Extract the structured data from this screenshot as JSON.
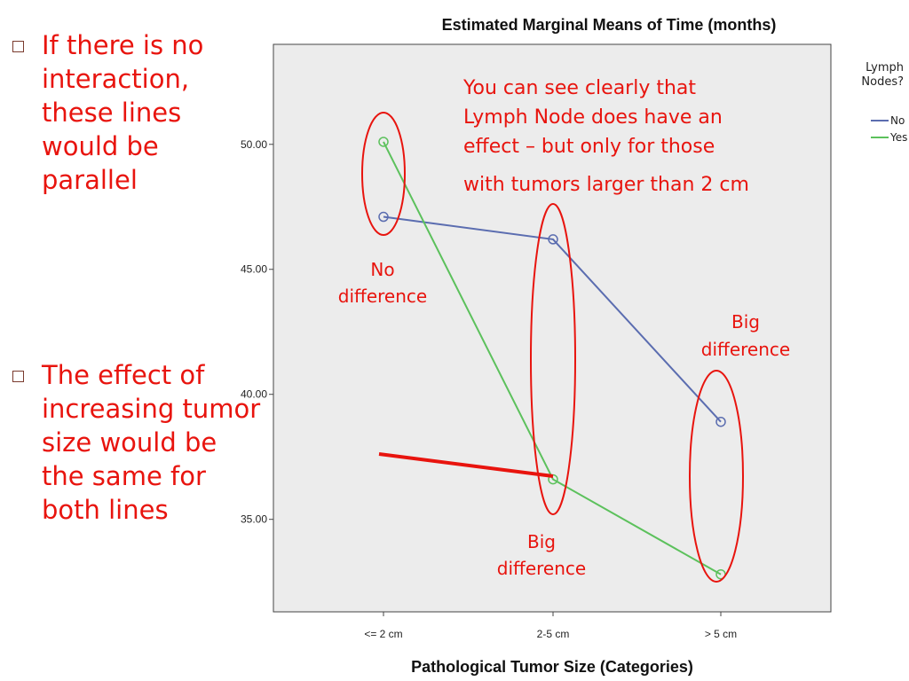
{
  "bullets": [
    "If there is no\ninteraction,\nthese lines\nwould be\nparallel",
    "The effect of\nincreasing tumor\nsize would be\nthe same for\nboth lines"
  ],
  "annotations": {
    "main": [
      "You can see clearly that",
      "Lymph Node does have an",
      "effect – but only for those",
      "with tumors larger than 2 cm"
    ],
    "no_difference": [
      "No",
      "difference"
    ],
    "big_difference_mid": [
      "Big",
      "difference"
    ],
    "big_difference_right": [
      "Big",
      "difference"
    ]
  },
  "colors": {
    "accent_red": "#e8140e",
    "series_no": "#5b6db0",
    "series_yes": "#5cc15c",
    "plot_bg": "#ececec"
  },
  "chart_data": {
    "type": "line",
    "title": "Estimated Marginal Means of Time (months)",
    "xlabel": "Pathological Tumor Size (Categories)",
    "ylabel": "",
    "categories": [
      "<= 2 cm",
      "2-5 cm",
      "> 5 cm"
    ],
    "y_ticks": [
      {
        "value": 35,
        "label": "35.00"
      },
      {
        "value": 40,
        "label": "40.00"
      },
      {
        "value": 45,
        "label": "45.00"
      },
      {
        "value": 50,
        "label": "50.00"
      }
    ],
    "ylim": [
      31.3,
      54.0
    ],
    "legend_title": "Lymph\nNodes?",
    "legend_position": "right",
    "series": [
      {
        "name": "No",
        "values": [
          47.1,
          46.2,
          38.9
        ],
        "color": "#5b6db0"
      },
      {
        "name": "Yes",
        "values": [
          50.1,
          36.6,
          32.8
        ],
        "color": "#5cc15c"
      }
    ]
  }
}
